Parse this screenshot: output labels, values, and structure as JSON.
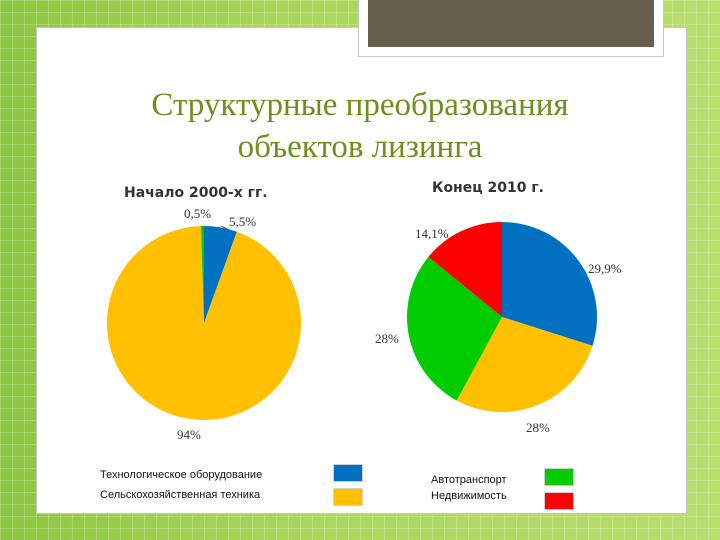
{
  "slide": {
    "title_line1": "Структурные преобразования",
    "title_line2": "объектов лизинга"
  },
  "legend": {
    "items": [
      {
        "label": "Технологическое оборудование",
        "color": "#0070c0"
      },
      {
        "label": "Сельскохозяйственная техника",
        "color": "#ffc000"
      },
      {
        "label": "Автотранспорт",
        "color": "#00cc00"
      },
      {
        "label": "Недвижимость",
        "color": "#ff0000"
      }
    ]
  },
  "chart_data": [
    {
      "type": "pie",
      "title": "Начало 2000-х гг.",
      "slices": [
        {
          "category": "Технологическое оборудование",
          "value": 5.5,
          "label": "5,5%",
          "color": "#0070c0"
        },
        {
          "category": "Сельскохозяйственная техника",
          "value": 94,
          "label": "94%",
          "color": "#ffc000"
        },
        {
          "category": "Автотранспорт",
          "value": 0.5,
          "label": "0,5%",
          "color": "#00cc00"
        }
      ]
    },
    {
      "type": "pie",
      "title": "Конец 2010 г.",
      "slices": [
        {
          "category": "Технологическое оборудование",
          "value": 29.9,
          "label": "29,9%",
          "color": "#0070c0"
        },
        {
          "category": "Сельскохозяйственная техника",
          "value": 28,
          "label": "28%",
          "color": "#ffc000"
        },
        {
          "category": "Автотранспорт",
          "value": 28,
          "label": "28%",
          "color": "#00cc00"
        },
        {
          "category": "Недвижимость",
          "value": 14.1,
          "label": "14,1%",
          "color": "#ff0000"
        }
      ]
    }
  ]
}
